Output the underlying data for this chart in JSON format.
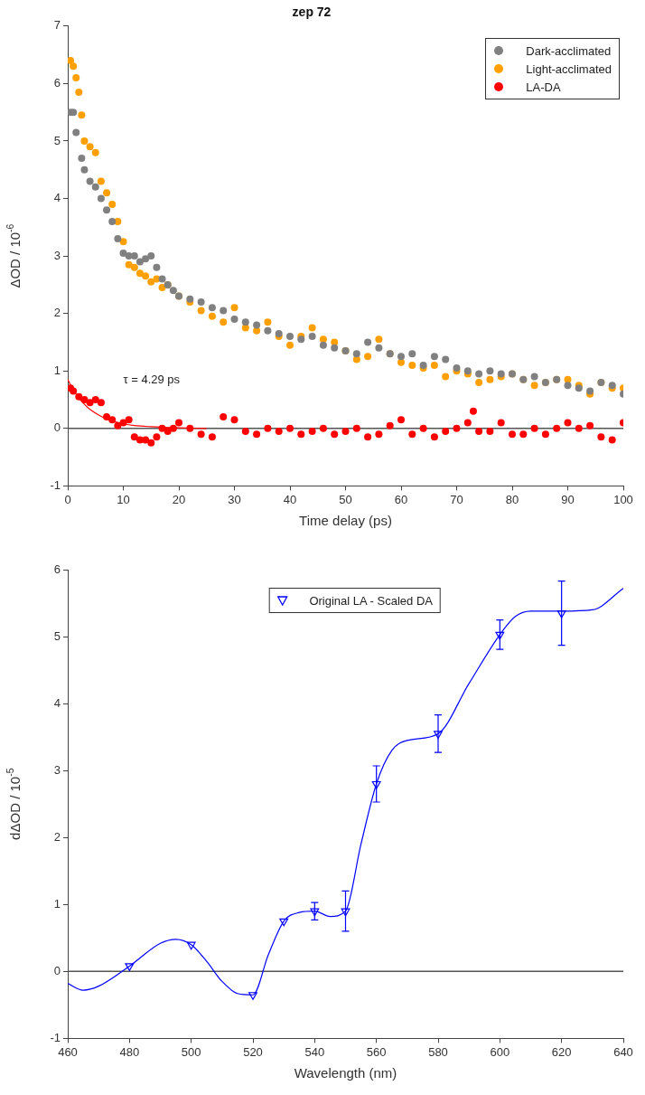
{
  "chart_data": [
    {
      "type": "scatter",
      "title": "zep 72",
      "xlabel": "Time delay (ps)",
      "ylabel": "ΔOD / 10$^{-6}$",
      "xlim": [
        0,
        100
      ],
      "xticks": [
        0,
        10,
        20,
        30,
        40,
        50,
        60,
        70,
        80,
        90,
        100
      ],
      "ylim": [
        -1,
        7
      ],
      "yticks": [
        -1,
        0,
        1,
        2,
        3,
        4,
        5,
        6,
        7
      ],
      "legend": "top right",
      "grid": false,
      "ref_lines": [
        {
          "axis": "y",
          "value": 0,
          "color": "#555555"
        }
      ],
      "annotations": [
        "τ = 4.29 ps"
      ],
      "series": [
        {
          "name": "Dark-acclimated",
          "type": "scatter",
          "marker": "circle",
          "color": "#808080",
          "x": [
            0.5,
            1,
            1.5,
            2.5,
            3,
            4,
            5,
            6,
            7,
            8,
            9,
            10,
            11,
            12,
            13,
            14,
            15,
            16,
            17,
            18,
            19,
            20,
            22,
            24,
            26,
            28,
            30,
            32,
            34,
            36,
            38,
            40,
            42,
            44,
            46,
            48,
            50,
            52,
            54,
            56,
            58,
            60,
            62,
            64,
            66,
            68,
            70,
            72,
            74,
            76,
            78,
            80,
            82,
            84,
            86,
            88,
            90,
            92,
            94,
            96,
            98,
            100
          ],
          "values": [
            5.5,
            5.5,
            5.15,
            4.7,
            4.5,
            4.3,
            4.2,
            4.0,
            3.8,
            3.6,
            3.3,
            3.05,
            3.0,
            3.0,
            2.9,
            2.95,
            3.0,
            2.8,
            2.6,
            2.5,
            2.4,
            2.3,
            2.25,
            2.2,
            2.1,
            2.05,
            1.9,
            1.85,
            1.8,
            1.7,
            1.65,
            1.6,
            1.55,
            1.6,
            1.45,
            1.4,
            1.35,
            1.3,
            1.5,
            1.4,
            1.3,
            1.25,
            1.3,
            1.1,
            1.25,
            1.2,
            1.05,
            1.0,
            0.95,
            1.0,
            0.95,
            0.95,
            0.85,
            0.9,
            0.8,
            0.85,
            0.75,
            0.7,
            0.65,
            0.8,
            0.75,
            0.6
          ]
        },
        {
          "name": "Light-acclimated",
          "type": "scatter",
          "marker": "circle",
          "color": "#ffa000",
          "x": [
            0.5,
            1,
            1.5,
            2,
            2.5,
            3,
            4,
            5,
            6,
            7,
            8,
            9,
            10,
            11,
            12,
            13,
            14,
            15,
            16,
            17,
            18,
            20,
            22,
            24,
            26,
            28,
            30,
            32,
            34,
            36,
            38,
            40,
            42,
            44,
            46,
            48,
            50,
            52,
            54,
            56,
            58,
            60,
            62,
            64,
            66,
            68,
            70,
            72,
            74,
            76,
            78,
            80,
            82,
            84,
            86,
            88,
            90,
            92,
            94,
            96,
            98,
            100
          ],
          "values": [
            6.4,
            6.3,
            6.1,
            5.85,
            5.45,
            5.0,
            4.9,
            4.8,
            4.3,
            4.1,
            3.9,
            3.6,
            3.25,
            2.85,
            2.8,
            2.7,
            2.65,
            2.55,
            2.6,
            2.45,
            2.5,
            2.3,
            2.2,
            2.05,
            1.95,
            1.85,
            2.1,
            1.75,
            1.7,
            1.85,
            1.6,
            1.45,
            1.6,
            1.75,
            1.55,
            1.5,
            1.35,
            1.2,
            1.25,
            1.55,
            1.3,
            1.15,
            1.1,
            1.05,
            1.1,
            0.9,
            1.0,
            0.95,
            0.8,
            0.85,
            0.9,
            0.95,
            0.85,
            0.75,
            0.8,
            0.85,
            0.85,
            0.75,
            0.6,
            0.8,
            0.7,
            0.7
          ]
        },
        {
          "name": "LA-DA",
          "type": "scatter",
          "marker": "circle",
          "color": "#ff0000",
          "x": [
            0.5,
            1,
            2,
            3,
            4,
            5,
            6,
            7,
            8,
            9,
            10,
            11,
            12,
            13,
            14,
            15,
            16,
            17,
            18,
            19,
            20,
            22,
            24,
            26,
            28,
            30,
            32,
            34,
            36,
            38,
            40,
            42,
            44,
            46,
            48,
            50,
            52,
            54,
            56,
            58,
            60,
            62,
            64,
            66,
            68,
            70,
            72,
            73,
            74,
            76,
            78,
            80,
            82,
            84,
            86,
            88,
            90,
            92,
            94,
            96,
            98,
            100
          ],
          "values": [
            0.7,
            0.65,
            0.55,
            0.5,
            0.45,
            0.5,
            0.45,
            0.2,
            0.15,
            0.05,
            0.1,
            0.15,
            -0.15,
            -0.2,
            -0.2,
            -0.25,
            -0.15,
            0.0,
            -0.05,
            0.0,
            0.1,
            0.0,
            -0.1,
            -0.15,
            0.2,
            0.15,
            -0.05,
            -0.1,
            0.0,
            -0.05,
            0.0,
            -0.1,
            -0.05,
            0.0,
            -0.1,
            -0.05,
            0.0,
            -0.15,
            -0.1,
            0.05,
            0.15,
            -0.1,
            0.0,
            -0.15,
            -0.05,
            0.0,
            0.1,
            0.3,
            -0.05,
            -0.05,
            0.1,
            -0.1,
            -0.1,
            0.0,
            -0.1,
            0.0,
            0.1,
            0.0,
            0.05,
            -0.15,
            -0.2,
            0.1
          ]
        },
        {
          "type": "line",
          "marker": "none",
          "color": "#ff0000",
          "x": [
            0,
            1,
            2,
            3,
            4,
            6,
            8,
            10,
            12,
            15,
            20,
            25
          ],
          "values": [
            0.85,
            0.67,
            0.53,
            0.42,
            0.33,
            0.21,
            0.13,
            0.08,
            0.05,
            0.03,
            0.01,
            0.0
          ]
        }
      ]
    },
    {
      "type": "scatter",
      "xlabel": "Wavelength (nm)",
      "ylabel": "dΔOD / 10$^{-5}$",
      "xlim": [
        460,
        640
      ],
      "xticks": [
        460,
        480,
        500,
        520,
        540,
        560,
        580,
        600,
        620,
        640
      ],
      "ylim": [
        -1,
        6
      ],
      "yticks": [
        -1,
        0,
        1,
        2,
        3,
        4,
        5,
        6
      ],
      "legend": "top",
      "grid": false,
      "ref_lines": [
        {
          "axis": "y",
          "value": 0,
          "color": "#555555"
        }
      ],
      "series": [
        {
          "name": "Original LA - Scaled DA",
          "type": "scatter",
          "marker": "triangle",
          "color": "#0000ff",
          "x": [
            480,
            500,
            520,
            530,
            540,
            550,
            560,
            580,
            600,
            620
          ],
          "values": [
            0.08,
            0.4,
            -0.35,
            0.75,
            0.9,
            0.9,
            2.8,
            3.55,
            5.03,
            5.35
          ],
          "errors": [
            null,
            null,
            null,
            null,
            0.13,
            0.3,
            0.27,
            0.28,
            0.22,
            0.48
          ]
        },
        {
          "type": "line",
          "marker": "none",
          "color": "#0000ff",
          "x": [
            460,
            465,
            470,
            480,
            490,
            495,
            500,
            505,
            510,
            515,
            520,
            525,
            530,
            535,
            540,
            545,
            550,
            555,
            560,
            565,
            570,
            580,
            590,
            600,
            605,
            610,
            620,
            630,
            640
          ],
          "values": [
            -0.18,
            -0.28,
            -0.22,
            0.08,
            0.42,
            0.48,
            0.4,
            0.15,
            -0.15,
            -0.33,
            -0.35,
            0.25,
            0.75,
            0.88,
            0.9,
            0.82,
            0.9,
            1.9,
            2.8,
            3.3,
            3.45,
            3.55,
            4.3,
            5.03,
            5.3,
            5.38,
            5.38,
            5.4,
            5.72
          ]
        }
      ]
    }
  ]
}
